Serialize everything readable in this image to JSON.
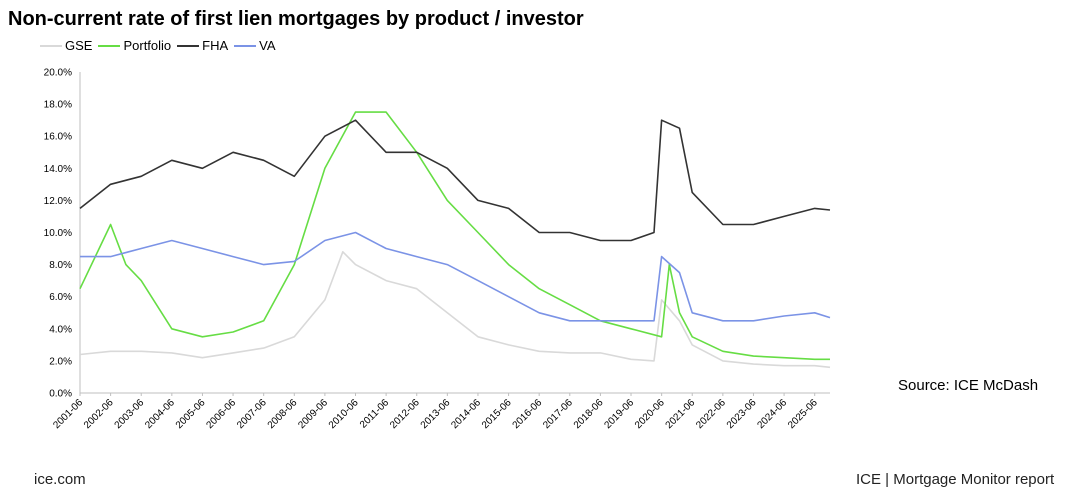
{
  "chart_data": {
    "type": "line",
    "title": "Non-current rate of first lien mortgages by product / investor",
    "ylim": [
      0,
      20
    ],
    "y_ticks": [
      "0.0%",
      "2.0%",
      "4.0%",
      "6.0%",
      "8.0%",
      "10.0%",
      "12.0%",
      "14.0%",
      "16.0%",
      "18.0%",
      "20.0%"
    ],
    "x_tick_labels": [
      "2001-06",
      "2002-06",
      "2003-06",
      "2004-06",
      "2005-06",
      "2006-06",
      "2007-06",
      "2008-06",
      "2009-06",
      "2010-06",
      "2011-06",
      "2012-06",
      "2013-06",
      "2014-06",
      "2015-06",
      "2016-06",
      "2017-06",
      "2018-06",
      "2019-06",
      "2020-06",
      "2021-06",
      "2022-06",
      "2023-06",
      "2024-06",
      "2025-06"
    ],
    "x_range": [
      "2001-06",
      "2025-12"
    ],
    "legend_position": "top-left",
    "grid": false,
    "series": [
      {
        "name": "GSE",
        "color": "#d9d9d9",
        "x": [
          "2001-06",
          "2002-06",
          "2003-06",
          "2004-06",
          "2005-06",
          "2006-06",
          "2007-06",
          "2008-06",
          "2009-06",
          "2010-01",
          "2010-06",
          "2011-06",
          "2012-06",
          "2013-06",
          "2014-06",
          "2015-06",
          "2016-06",
          "2017-06",
          "2018-06",
          "2019-06",
          "2020-03",
          "2020-06",
          "2021-01",
          "2021-06",
          "2022-06",
          "2023-06",
          "2024-06",
          "2025-06",
          "2025-12"
        ],
        "values": [
          2.4,
          2.6,
          2.6,
          2.5,
          2.2,
          2.5,
          2.8,
          3.5,
          5.8,
          8.8,
          8.0,
          7.0,
          6.5,
          5.0,
          3.5,
          3.0,
          2.6,
          2.5,
          2.5,
          2.1,
          2.0,
          5.8,
          4.5,
          3.0,
          2.0,
          1.8,
          1.7,
          1.7,
          1.6
        ]
      },
      {
        "name": "Portfolio",
        "color": "#66dd44",
        "x": [
          "2001-06",
          "2002-06",
          "2002-12",
          "2003-06",
          "2004-06",
          "2005-06",
          "2006-06",
          "2007-06",
          "2008-06",
          "2009-06",
          "2010-06",
          "2011-06",
          "2012-06",
          "2013-06",
          "2014-06",
          "2015-06",
          "2016-06",
          "2017-06",
          "2018-06",
          "2019-06",
          "2020-06",
          "2020-09",
          "2021-01",
          "2021-06",
          "2022-06",
          "2023-06",
          "2024-06",
          "2025-06",
          "2025-12"
        ],
        "values": [
          6.5,
          10.5,
          8.0,
          7.0,
          4.0,
          3.5,
          3.8,
          4.5,
          8.0,
          14.0,
          17.5,
          17.5,
          15.0,
          12.0,
          10.0,
          8.0,
          6.5,
          5.5,
          4.5,
          4.0,
          3.5,
          8.0,
          5.0,
          3.5,
          2.6,
          2.3,
          2.2,
          2.1,
          2.1
        ]
      },
      {
        "name": "FHA",
        "color": "#333333",
        "x": [
          "2001-06",
          "2002-06",
          "2003-06",
          "2004-06",
          "2005-06",
          "2006-06",
          "2007-06",
          "2008-06",
          "2009-06",
          "2010-06",
          "2011-06",
          "2012-06",
          "2013-06",
          "2014-06",
          "2015-06",
          "2016-06",
          "2017-06",
          "2018-06",
          "2019-06",
          "2020-03",
          "2020-06",
          "2021-01",
          "2021-06",
          "2022-06",
          "2023-06",
          "2024-06",
          "2025-06",
          "2025-12"
        ],
        "values": [
          11.5,
          13.0,
          13.5,
          14.5,
          14.0,
          15.0,
          14.5,
          13.5,
          16.0,
          17.0,
          15.0,
          15.0,
          14.0,
          12.0,
          11.5,
          10.0,
          10.0,
          9.5,
          9.5,
          10.0,
          17.0,
          16.5,
          12.5,
          10.5,
          10.5,
          11.0,
          11.5,
          11.4
        ]
      },
      {
        "name": "VA",
        "color": "#7b93e6",
        "x": [
          "2001-06",
          "2002-06",
          "2003-06",
          "2004-06",
          "2005-06",
          "2006-06",
          "2007-06",
          "2008-06",
          "2009-06",
          "2010-06",
          "2011-06",
          "2012-06",
          "2013-06",
          "2014-06",
          "2015-06",
          "2016-06",
          "2017-06",
          "2018-06",
          "2019-06",
          "2020-03",
          "2020-06",
          "2021-01",
          "2021-06",
          "2022-06",
          "2023-06",
          "2024-06",
          "2025-06",
          "2025-12"
        ],
        "values": [
          8.5,
          8.5,
          9.0,
          9.5,
          9.0,
          8.5,
          8.0,
          8.2,
          9.5,
          10.0,
          9.0,
          8.5,
          8.0,
          7.0,
          6.0,
          5.0,
          4.5,
          4.5,
          4.5,
          4.5,
          8.5,
          7.5,
          5.0,
          4.5,
          4.5,
          4.8,
          5.0,
          4.7
        ]
      }
    ]
  },
  "source": "Source: ICE McDash",
  "footer": {
    "left": "ice.com",
    "right": "ICE | Mortgage Monitor report"
  }
}
